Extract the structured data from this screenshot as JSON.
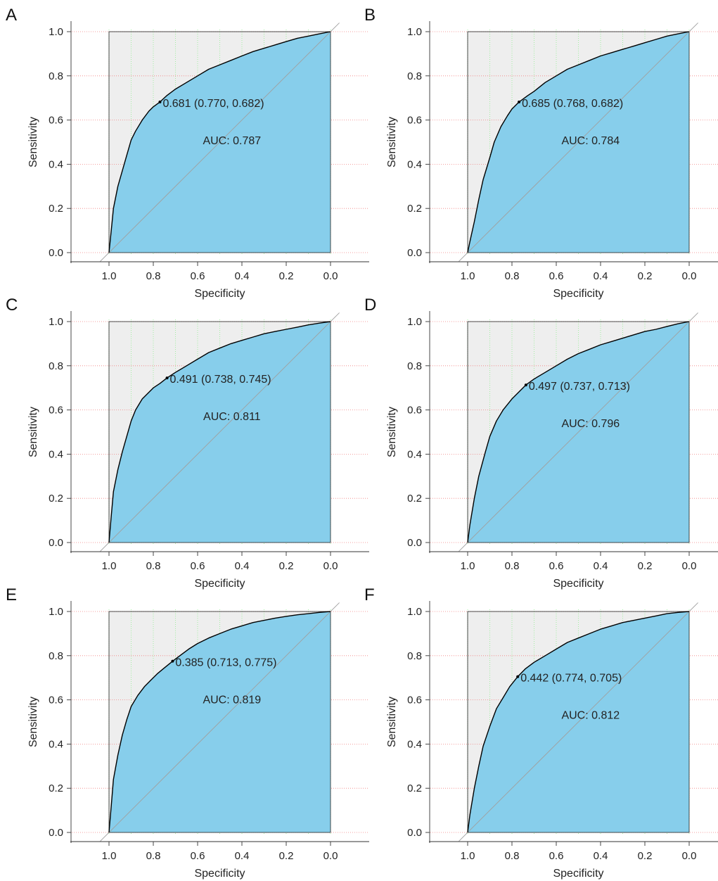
{
  "colors": {
    "fill": "#87CEEB",
    "background_region": "#EEEEEE",
    "curve": "#000000",
    "diagonal": "#A0A0A0",
    "h_grid": "#F08080",
    "v_grid": "#90EE90",
    "frame": "#222222"
  },
  "chart_data": [
    {
      "type": "area",
      "panel": "A",
      "xlabel": "Specificity",
      "ylabel": "Sensitivity",
      "xlim": [
        1.0,
        0.0
      ],
      "ylim": [
        0.0,
        1.0
      ],
      "x_ticks": [
        "1.0",
        "0.8",
        "0.6",
        "0.4",
        "0.2",
        "0.0"
      ],
      "y_ticks": [
        "0.0",
        "0.2",
        "0.4",
        "0.6",
        "0.8",
        "1.0"
      ],
      "grid": "on",
      "specificity": [
        1.0,
        0.99,
        0.98,
        0.96,
        0.94,
        0.92,
        0.9,
        0.88,
        0.85,
        0.82,
        0.8,
        0.77,
        0.74,
        0.7,
        0.65,
        0.6,
        0.55,
        0.5,
        0.45,
        0.4,
        0.35,
        0.3,
        0.25,
        0.2,
        0.15,
        0.1,
        0.05,
        0.0
      ],
      "sensitivity": [
        0.0,
        0.1,
        0.2,
        0.3,
        0.37,
        0.44,
        0.51,
        0.55,
        0.6,
        0.64,
        0.66,
        0.682,
        0.71,
        0.74,
        0.77,
        0.8,
        0.83,
        0.85,
        0.87,
        0.89,
        0.91,
        0.925,
        0.94,
        0.955,
        0.97,
        0.98,
        0.99,
        1.0
      ],
      "best_threshold": {
        "threshold": 0.681,
        "specificity": 0.77,
        "sensitivity": 0.682
      },
      "best_label": "0.681 (0.770, 0.682)",
      "auc": 0.787,
      "auc_label": "AUC: 0.787"
    },
    {
      "type": "area",
      "panel": "B",
      "xlabel": "Specificity",
      "ylabel": "Sensitivity",
      "xlim": [
        1.0,
        0.0
      ],
      "ylim": [
        0.0,
        1.0
      ],
      "x_ticks": [
        "1.0",
        "0.8",
        "0.6",
        "0.4",
        "0.2",
        "0.0"
      ],
      "y_ticks": [
        "0.0",
        "0.2",
        "0.4",
        "0.6",
        "0.8",
        "1.0"
      ],
      "grid": "on",
      "specificity": [
        1.0,
        0.99,
        0.97,
        0.95,
        0.93,
        0.9,
        0.88,
        0.85,
        0.82,
        0.8,
        0.768,
        0.73,
        0.7,
        0.65,
        0.6,
        0.55,
        0.5,
        0.45,
        0.4,
        0.35,
        0.3,
        0.25,
        0.2,
        0.15,
        0.1,
        0.05,
        0.0
      ],
      "sensitivity": [
        0.0,
        0.05,
        0.14,
        0.24,
        0.33,
        0.43,
        0.5,
        0.57,
        0.62,
        0.65,
        0.682,
        0.71,
        0.73,
        0.77,
        0.8,
        0.83,
        0.85,
        0.87,
        0.89,
        0.905,
        0.92,
        0.935,
        0.95,
        0.965,
        0.98,
        0.99,
        1.0
      ],
      "best_threshold": {
        "threshold": 0.685,
        "specificity": 0.768,
        "sensitivity": 0.682
      },
      "best_label": "0.685 (0.768, 0.682)",
      "auc": 0.784,
      "auc_label": "AUC: 0.784"
    },
    {
      "type": "area",
      "panel": "C",
      "xlabel": "Specificity",
      "ylabel": "Sensitivity",
      "xlim": [
        1.0,
        0.0
      ],
      "ylim": [
        0.0,
        1.0
      ],
      "x_ticks": [
        "1.0",
        "0.8",
        "0.6",
        "0.4",
        "0.2",
        "0.0"
      ],
      "y_ticks": [
        "0.0",
        "0.2",
        "0.4",
        "0.6",
        "0.8",
        "1.0"
      ],
      "grid": "on",
      "specificity": [
        1.0,
        0.99,
        0.98,
        0.96,
        0.94,
        0.92,
        0.9,
        0.88,
        0.85,
        0.82,
        0.8,
        0.77,
        0.738,
        0.7,
        0.65,
        0.6,
        0.55,
        0.5,
        0.45,
        0.4,
        0.35,
        0.3,
        0.25,
        0.2,
        0.15,
        0.1,
        0.05,
        0.0
      ],
      "sensitivity": [
        0.0,
        0.12,
        0.23,
        0.33,
        0.41,
        0.48,
        0.55,
        0.6,
        0.65,
        0.68,
        0.7,
        0.72,
        0.745,
        0.77,
        0.8,
        0.83,
        0.86,
        0.88,
        0.9,
        0.915,
        0.93,
        0.945,
        0.955,
        0.965,
        0.975,
        0.985,
        0.993,
        1.0
      ],
      "best_threshold": {
        "threshold": 0.491,
        "specificity": 0.738,
        "sensitivity": 0.745
      },
      "best_label": "0.491 (0.738, 0.745)",
      "auc": 0.811,
      "auc_label": "AUC: 0.811"
    },
    {
      "type": "area",
      "panel": "D",
      "xlabel": "Specificity",
      "ylabel": "Sensitivity",
      "xlim": [
        1.0,
        0.0
      ],
      "ylim": [
        0.0,
        1.0
      ],
      "x_ticks": [
        "1.0",
        "0.8",
        "0.6",
        "0.4",
        "0.2",
        "0.0"
      ],
      "y_ticks": [
        "0.0",
        "0.2",
        "0.4",
        "0.6",
        "0.8",
        "1.0"
      ],
      "grid": "on",
      "specificity": [
        1.0,
        0.99,
        0.97,
        0.95,
        0.92,
        0.9,
        0.87,
        0.84,
        0.8,
        0.77,
        0.737,
        0.7,
        0.65,
        0.6,
        0.55,
        0.5,
        0.45,
        0.4,
        0.35,
        0.3,
        0.25,
        0.2,
        0.15,
        0.1,
        0.05,
        0.0
      ],
      "sensitivity": [
        0.0,
        0.08,
        0.2,
        0.3,
        0.41,
        0.48,
        0.55,
        0.6,
        0.65,
        0.68,
        0.713,
        0.74,
        0.77,
        0.8,
        0.83,
        0.855,
        0.875,
        0.895,
        0.91,
        0.925,
        0.94,
        0.955,
        0.965,
        0.978,
        0.99,
        1.0
      ],
      "best_threshold": {
        "threshold": 0.497,
        "specificity": 0.737,
        "sensitivity": 0.713
      },
      "best_label": "0.497 (0.737, 0.713)",
      "auc": 0.796,
      "auc_label": "AUC: 0.796"
    },
    {
      "type": "area",
      "panel": "E",
      "xlabel": "Specificity",
      "ylabel": "Sensitivity",
      "xlim": [
        1.0,
        0.0
      ],
      "ylim": [
        0.0,
        1.0
      ],
      "x_ticks": [
        "1.0",
        "0.8",
        "0.6",
        "0.4",
        "0.2",
        "0.0"
      ],
      "y_ticks": [
        "0.0",
        "0.2",
        "0.4",
        "0.6",
        "0.8",
        "1.0"
      ],
      "grid": "on",
      "specificity": [
        1.0,
        0.99,
        0.98,
        0.96,
        0.94,
        0.92,
        0.9,
        0.87,
        0.84,
        0.81,
        0.78,
        0.75,
        0.713,
        0.68,
        0.64,
        0.6,
        0.55,
        0.5,
        0.45,
        0.4,
        0.35,
        0.3,
        0.25,
        0.2,
        0.15,
        0.1,
        0.05,
        0.0
      ],
      "sensitivity": [
        0.0,
        0.12,
        0.24,
        0.35,
        0.44,
        0.51,
        0.57,
        0.62,
        0.66,
        0.69,
        0.72,
        0.745,
        0.775,
        0.8,
        0.83,
        0.855,
        0.88,
        0.9,
        0.92,
        0.935,
        0.95,
        0.96,
        0.97,
        0.978,
        0.985,
        0.99,
        0.996,
        1.0
      ],
      "best_threshold": {
        "threshold": 0.385,
        "specificity": 0.713,
        "sensitivity": 0.775
      },
      "best_label": "0.385 (0.713, 0.775)",
      "auc": 0.819,
      "auc_label": "AUC: 0.819"
    },
    {
      "type": "area",
      "panel": "F",
      "xlabel": "Specificity",
      "ylabel": "Sensitivity",
      "xlim": [
        1.0,
        0.0
      ],
      "ylim": [
        0.0,
        1.0
      ],
      "x_ticks": [
        "1.0",
        "0.8",
        "0.6",
        "0.4",
        "0.2",
        "0.0"
      ],
      "y_ticks": [
        "0.0",
        "0.2",
        "0.4",
        "0.6",
        "0.8",
        "1.0"
      ],
      "grid": "on",
      "specificity": [
        1.0,
        0.99,
        0.97,
        0.95,
        0.93,
        0.9,
        0.87,
        0.84,
        0.81,
        0.774,
        0.74,
        0.7,
        0.65,
        0.6,
        0.55,
        0.5,
        0.45,
        0.4,
        0.35,
        0.3,
        0.25,
        0.2,
        0.15,
        0.1,
        0.05,
        0.0
      ],
      "sensitivity": [
        0.0,
        0.08,
        0.2,
        0.3,
        0.39,
        0.48,
        0.56,
        0.61,
        0.66,
        0.705,
        0.74,
        0.77,
        0.8,
        0.83,
        0.86,
        0.88,
        0.9,
        0.92,
        0.935,
        0.95,
        0.96,
        0.97,
        0.98,
        0.99,
        0.996,
        1.0
      ],
      "best_threshold": {
        "threshold": 0.442,
        "specificity": 0.774,
        "sensitivity": 0.705
      },
      "best_label": "0.442 (0.774, 0.705)",
      "auc": 0.812,
      "auc_label": "AUC: 0.812"
    }
  ]
}
